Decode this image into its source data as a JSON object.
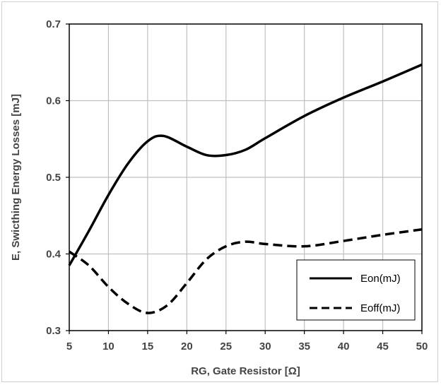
{
  "chart_data": {
    "type": "line",
    "title": "",
    "xlabel": "RG, Gate Resistor [Ω]",
    "ylabel": "E, Swicthing Energy Losses [mJ]",
    "xlim": [
      5,
      50
    ],
    "ylim": [
      0.3,
      0.7
    ],
    "x_ticks": [
      "5",
      "10",
      "15",
      "20",
      "25",
      "30",
      "35",
      "40",
      "45",
      "50"
    ],
    "y_ticks": [
      "0.3",
      "0.4",
      "0.5",
      "0.6",
      "0.7"
    ],
    "grid": true,
    "legend_position": "bottom-right",
    "series": [
      {
        "name": "Eon(mJ)",
        "style": "solid",
        "color": "#000000",
        "x": [
          5,
          7.5,
          10,
          12.5,
          15,
          17,
          20,
          22.5,
          25,
          27.5,
          30,
          35,
          40,
          45,
          50
        ],
        "y": [
          0.385,
          0.43,
          0.477,
          0.518,
          0.547,
          0.554,
          0.54,
          0.529,
          0.529,
          0.536,
          0.551,
          0.58,
          0.604,
          0.625,
          0.647
        ]
      },
      {
        "name": "Eoff(mJ)",
        "style": "dashed",
        "color": "#000000",
        "x": [
          5,
          7.5,
          10,
          12.5,
          15,
          17.5,
          20,
          22.5,
          25,
          27.5,
          30,
          35,
          40,
          45,
          50
        ],
        "y": [
          0.403,
          0.385,
          0.357,
          0.335,
          0.323,
          0.333,
          0.362,
          0.393,
          0.41,
          0.416,
          0.413,
          0.41,
          0.417,
          0.425,
          0.432
        ]
      }
    ]
  }
}
